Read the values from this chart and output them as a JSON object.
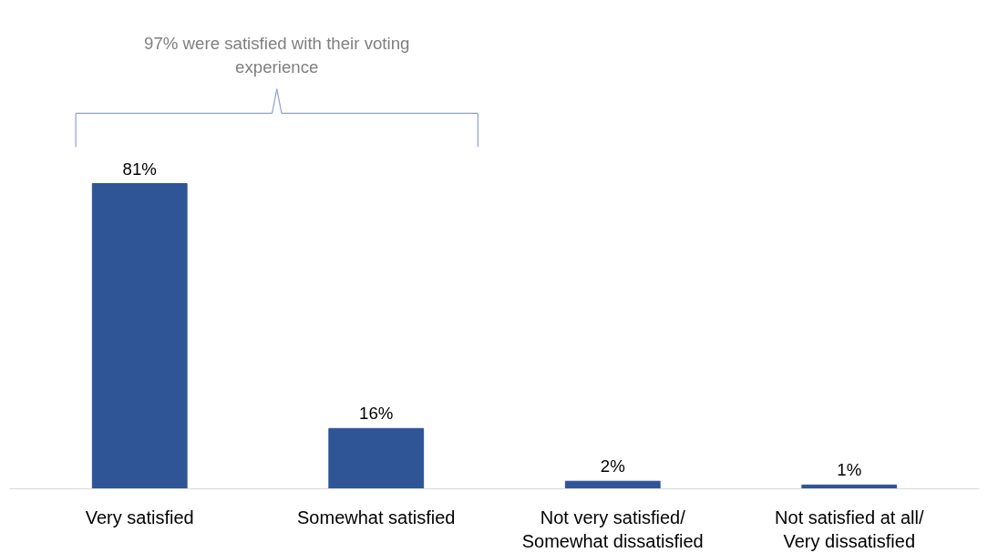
{
  "chart_data": {
    "type": "bar",
    "categories": [
      "Very satisfied",
      "Somewhat satisfied",
      "Not very satisfied/ Somewhat dissatisfied",
      "Not satisfied at all/ Very dissatisfied"
    ],
    "values": [
      81,
      16,
      2,
      1
    ],
    "color": "#2f5597",
    "value_labels": [
      "81%",
      "16%",
      "2%",
      "1%"
    ],
    "annotations": [
      "97% were satisfied with their voting experience"
    ],
    "grid": false
  }
}
